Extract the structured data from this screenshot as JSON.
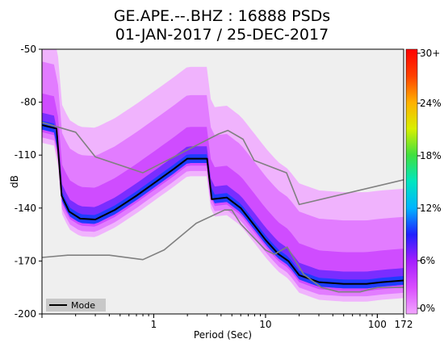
{
  "title_line1": "GE.APE.--.BHZ : 16888 PSDs",
  "title_line2": "01-JAN-2017 / 25-DEC-2017",
  "chart_data": {
    "type": "heatmap",
    "xlabel": "Period (Sec)",
    "ylabel": "dB",
    "x_scale": "log",
    "xlim": [
      0.1,
      172
    ],
    "ylim": [
      -200,
      -50
    ],
    "x_ticks": [
      {
        "value": 1,
        "label": "1"
      },
      {
        "value": 10,
        "label": "10"
      },
      {
        "value": 100,
        "label": "100"
      },
      {
        "value": 172,
        "label": "172"
      }
    ],
    "y_ticks": [
      {
        "value": -50,
        "label": "-50"
      },
      {
        "value": -80,
        "label": "-80"
      },
      {
        "value": -110,
        "label": "-110"
      },
      {
        "value": -140,
        "label": "-140"
      },
      {
        "value": -170,
        "label": "-170"
      },
      {
        "value": -200,
        "label": "-200"
      }
    ],
    "colorbar": {
      "ticks": [
        "0%",
        "6%",
        "12%",
        "18%",
        "24%",
        "30+"
      ],
      "colors": [
        "#f2a6ff",
        "#d94cff",
        "#a51eff",
        "#2020ff",
        "#00b4ff",
        "#00e6c0",
        "#40e040",
        "#d8f000",
        "#ffb000",
        "#ff4000",
        "#ff0000"
      ]
    },
    "legend": {
      "label": "Mode",
      "position": "bottom-left"
    },
    "series": [
      {
        "name": "Mode",
        "color": "#000000",
        "points": [
          [
            0.1,
            -93
          ],
          [
            0.135,
            -95
          ],
          [
            0.15,
            -133
          ],
          [
            0.175,
            -142
          ],
          [
            0.22,
            -146
          ],
          [
            0.3,
            -146.5
          ],
          [
            0.45,
            -141
          ],
          [
            0.7,
            -133
          ],
          [
            1.0,
            -126
          ],
          [
            1.5,
            -118
          ],
          [
            2.0,
            -112
          ],
          [
            3.0,
            -112
          ],
          [
            3.3,
            -135
          ],
          [
            4.5,
            -134
          ],
          [
            6.0,
            -140
          ],
          [
            8.0,
            -150
          ],
          [
            10.0,
            -158
          ],
          [
            13.0,
            -166
          ],
          [
            16.0,
            -170
          ],
          [
            20.0,
            -178
          ],
          [
            30.0,
            -182
          ],
          [
            50.0,
            -183
          ],
          [
            80.0,
            -183
          ],
          [
            110.0,
            -182
          ],
          [
            172.0,
            -181
          ]
        ]
      },
      {
        "name": "New High Noise Model",
        "color": "#808080",
        "points": [
          [
            0.1,
            -91.5
          ],
          [
            0.2,
            -97
          ],
          [
            0.3,
            -111
          ],
          [
            0.8,
            -120
          ],
          [
            3.8,
            -98
          ],
          [
            4.6,
            -96
          ],
          [
            6.3,
            -101
          ],
          [
            7.9,
            -113
          ],
          [
            15.4,
            -120
          ],
          [
            20.0,
            -138
          ],
          [
            172.0,
            -124
          ]
        ]
      },
      {
        "name": "New Low Noise Model",
        "color": "#808080",
        "points": [
          [
            0.1,
            -168
          ],
          [
            0.17,
            -166.7
          ],
          [
            0.4,
            -166.7
          ],
          [
            0.8,
            -169.2
          ],
          [
            1.24,
            -163.7
          ],
          [
            2.4,
            -148.6
          ],
          [
            4.3,
            -141.1
          ],
          [
            5.0,
            -141.1
          ],
          [
            6.0,
            -149
          ],
          [
            10.0,
            -163.8
          ],
          [
            12.0,
            -166.2
          ],
          [
            15.6,
            -162.1
          ],
          [
            21.9,
            -177.5
          ],
          [
            31.6,
            -185
          ],
          [
            45.0,
            -187.5
          ],
          [
            70.0,
            -187.5
          ],
          [
            101.0,
            -185
          ],
          [
            172.0,
            -185
          ]
        ]
      }
    ]
  }
}
